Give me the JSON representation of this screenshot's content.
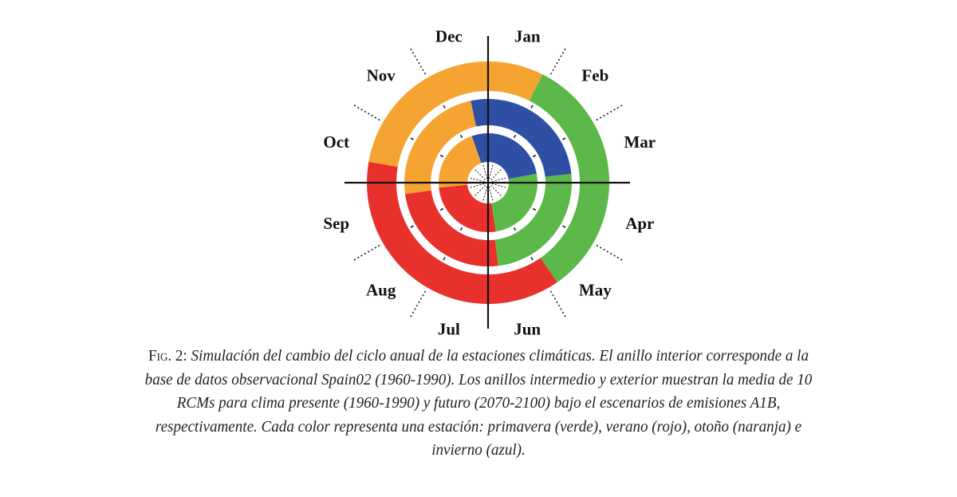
{
  "chart_data": {
    "type": "radial-ring",
    "months": [
      "Jan",
      "Feb",
      "Mar",
      "Apr",
      "May",
      "Jun",
      "Jul",
      "Aug",
      "Sep",
      "Oct",
      "Nov",
      "Dec"
    ],
    "colors": {
      "spring": "#5cb848",
      "summer": "#e8302c",
      "autumn": "#f5a331",
      "winter": "#2e4fa3"
    },
    "rings": [
      {
        "ring": "inner",
        "segments": [
          {
            "season": "winter",
            "start_month": 11.36,
            "end_month": 14.65
          },
          {
            "season": "spring",
            "start_month": 2.65,
            "end_month": 5.7
          },
          {
            "season": "summer",
            "start_month": 5.7,
            "end_month": 8.81
          },
          {
            "season": "autumn",
            "start_month": 8.81,
            "end_month": 11.36
          }
        ]
      },
      {
        "ring": "middle",
        "segments": [
          {
            "season": "winter",
            "start_month": 11.6,
            "end_month": 14.8
          },
          {
            "season": "spring",
            "start_month": 2.8,
            "end_month": 5.77
          },
          {
            "season": "summer",
            "start_month": 5.77,
            "end_month": 8.74
          },
          {
            "season": "autumn",
            "start_month": 8.74,
            "end_month": 11.6
          }
        ]
      },
      {
        "ring": "outer",
        "segments": [
          {
            "season": "autumn",
            "start_month": 9.33,
            "end_month": 12.89
          },
          {
            "season": "spring",
            "start_month": 0.89,
            "end_month": 4.84
          },
          {
            "season": "summer",
            "start_month": 4.84,
            "end_month": 9.33
          }
        ]
      }
    ]
  },
  "caption": {
    "fig_label": "Fig. 2:",
    "lines": [
      " Simulación del cambio del ciclo anual de la estaciones climáticas. El anillo interior corresponde a la",
      "base de datos observacional Spain02 (1960-1990). Los anillos intermedio y exterior muestran la media de 10",
      "RCMs para clima presente (1960-1990) y futuro (2070-2100) bajo el escenarios de emisiones A1B,",
      "respectivamente. Cada color representa una estación: primavera (verde), verano (rojo), otoño (naranja) e",
      "invierno (azul)."
    ]
  }
}
